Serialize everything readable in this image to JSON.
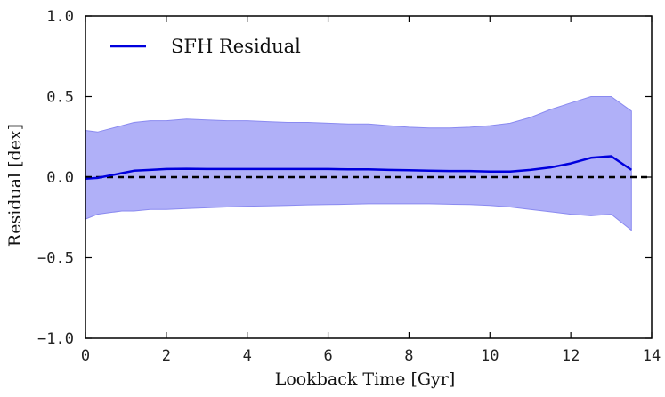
{
  "chart_data": {
    "type": "line",
    "xlabel": "Lookback Time [Gyr]",
    "ylabel": "Residual [dex]",
    "xlim": [
      0,
      14
    ],
    "ylim": [
      -1.0,
      1.0
    ],
    "xticks": [
      0,
      2,
      4,
      6,
      8,
      10,
      12,
      14
    ],
    "yticks": [
      -1.0,
      -0.5,
      0.0,
      0.5,
      1.0
    ],
    "xtick_labels": [
      "0",
      "2",
      "4",
      "6",
      "8",
      "10",
      "12",
      "14"
    ],
    "ytick_labels": [
      "−1.0",
      "−0.5",
      "0.0",
      "0.5",
      "1.0"
    ],
    "legend": {
      "position": "top-left",
      "entries": [
        "SFH Residual"
      ]
    },
    "reference_line": {
      "y": 0.0,
      "style": "dashed",
      "color": "#000000"
    },
    "colors": {
      "line": "#0000dd",
      "band": "#b0b0f8",
      "band_edge": "#8a8af0"
    },
    "series": [
      {
        "name": "SFH Residual",
        "x": [
          0.0,
          0.3,
          0.6,
          0.9,
          1.2,
          1.6,
          2.0,
          2.5,
          3.0,
          3.5,
          4.0,
          4.5,
          5.0,
          5.5,
          6.0,
          6.5,
          7.0,
          7.5,
          8.0,
          8.5,
          9.0,
          9.5,
          10.0,
          10.5,
          11.0,
          11.5,
          12.0,
          12.5,
          13.0,
          13.5
        ],
        "y": [
          -0.01,
          -0.005,
          0.01,
          0.025,
          0.04,
          0.045,
          0.05,
          0.052,
          0.05,
          0.05,
          0.05,
          0.05,
          0.05,
          0.05,
          0.05,
          0.048,
          0.048,
          0.045,
          0.043,
          0.04,
          0.038,
          0.038,
          0.035,
          0.035,
          0.045,
          0.06,
          0.085,
          0.12,
          0.13,
          0.045
        ],
        "upper": [
          0.29,
          0.28,
          0.3,
          0.32,
          0.34,
          0.35,
          0.35,
          0.36,
          0.355,
          0.35,
          0.35,
          0.345,
          0.34,
          0.34,
          0.335,
          0.33,
          0.33,
          0.32,
          0.31,
          0.305,
          0.305,
          0.31,
          0.32,
          0.335,
          0.37,
          0.42,
          0.46,
          0.5,
          0.5,
          0.41
        ],
        "lower": [
          -0.26,
          -0.23,
          -0.22,
          -0.21,
          -0.21,
          -0.2,
          -0.2,
          -0.195,
          -0.19,
          -0.185,
          -0.18,
          -0.178,
          -0.175,
          -0.172,
          -0.17,
          -0.168,
          -0.165,
          -0.165,
          -0.165,
          -0.165,
          -0.168,
          -0.17,
          -0.175,
          -0.185,
          -0.2,
          -0.215,
          -0.23,
          -0.24,
          -0.23,
          -0.33
        ]
      }
    ]
  }
}
